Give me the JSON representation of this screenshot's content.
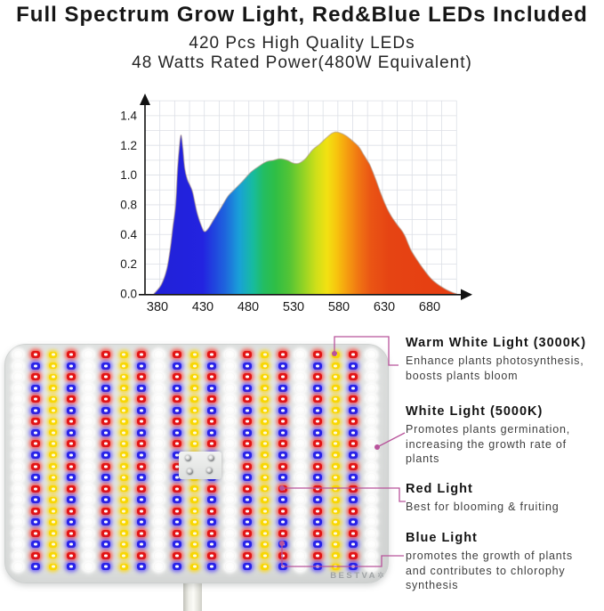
{
  "header": {
    "title": "Full Spectrum Grow Light, Red&Blue LEDs Included",
    "subtitle1": "420 Pcs High Quality LEDs",
    "subtitle2": "48 Watts Rated Power(480W Equivalent)"
  },
  "chart_data": {
    "type": "area",
    "x_ticks": [
      380,
      430,
      480,
      530,
      580,
      630,
      680
    ],
    "y_tick_labels": [
      "0.0",
      "0.2",
      "0.4",
      "0.8",
      "1.0",
      "1.2",
      "1.4"
    ],
    "x_range_nm": [
      376,
      710
    ],
    "grid": true,
    "curve": [
      [
        376,
        0
      ],
      [
        384,
        0.06
      ],
      [
        390,
        0.16
      ],
      [
        394,
        0.3
      ],
      [
        397,
        0.5
      ],
      [
        400,
        0.8
      ],
      [
        402,
        1.02
      ],
      [
        404,
        1.18
      ],
      [
        406,
        1.27
      ],
      [
        408,
        1.18
      ],
      [
        410,
        1.05
      ],
      [
        413,
        0.97
      ],
      [
        416,
        0.93
      ],
      [
        419,
        0.88
      ],
      [
        424,
        0.68
      ],
      [
        429,
        0.5
      ],
      [
        432,
        0.44
      ],
      [
        436,
        0.48
      ],
      [
        442,
        0.6
      ],
      [
        450,
        0.76
      ],
      [
        458,
        0.86
      ],
      [
        466,
        0.91
      ],
      [
        474,
        0.96
      ],
      [
        483,
        1.02
      ],
      [
        492,
        1.06
      ],
      [
        500,
        1.09
      ],
      [
        508,
        1.1
      ],
      [
        515,
        1.11
      ],
      [
        523,
        1.1
      ],
      [
        530,
        1.08
      ],
      [
        536,
        1.08
      ],
      [
        543,
        1.11
      ],
      [
        551,
        1.17
      ],
      [
        559,
        1.21
      ],
      [
        566,
        1.25
      ],
      [
        572,
        1.28
      ],
      [
        577,
        1.29
      ],
      [
        583,
        1.28
      ],
      [
        589,
        1.26
      ],
      [
        595,
        1.23
      ],
      [
        602,
        1.19
      ],
      [
        608,
        1.13
      ],
      [
        614,
        1.07
      ],
      [
        620,
        0.98
      ],
      [
        626,
        0.88
      ],
      [
        632,
        0.78
      ],
      [
        638,
        0.64
      ],
      [
        645,
        0.52
      ],
      [
        652,
        0.4
      ],
      [
        659,
        0.3
      ],
      [
        666,
        0.23
      ],
      [
        674,
        0.16
      ],
      [
        682,
        0.1
      ],
      [
        690,
        0.06
      ],
      [
        698,
        0.03
      ],
      [
        705,
        0.01
      ],
      [
        710,
        0
      ]
    ],
    "spectrum_gradient": [
      [
        380,
        "#2121d8"
      ],
      [
        430,
        "#2323e0"
      ],
      [
        455,
        "#1e66dd"
      ],
      [
        470,
        "#19a0d8"
      ],
      [
        485,
        "#17bba0"
      ],
      [
        497,
        "#23bd62"
      ],
      [
        510,
        "#2fbe45"
      ],
      [
        525,
        "#52c436"
      ],
      [
        540,
        "#8fd226"
      ],
      [
        555,
        "#cfdf19"
      ],
      [
        567,
        "#f2e112"
      ],
      [
        578,
        "#f7c30e"
      ],
      [
        590,
        "#f59a10"
      ],
      [
        602,
        "#f07413"
      ],
      [
        615,
        "#ea5514"
      ],
      [
        635,
        "#e64413"
      ],
      [
        710,
        "#e63d12"
      ]
    ]
  },
  "panel": {
    "logo": "BESTVA",
    "logo_mark": "✲",
    "rows_per_column": 20,
    "total_leds": 420,
    "led_columns": [
      "white",
      "red-blue",
      "warm-white",
      "red-blue",
      "white",
      "red-blue",
      "warm-white",
      "red-blue",
      "white",
      "red-blue",
      "warm-white",
      "red-blue",
      "white",
      "red-blue",
      "warm-white",
      "red-blue",
      "white",
      "red-blue",
      "warm-white",
      "red-blue",
      "white"
    ],
    "led_colors": {
      "red": "#e31515",
      "blue": "#2823e8",
      "warm_white": "#f8d703",
      "white": "#ffffff"
    }
  },
  "annotations": [
    {
      "title": "Warm White Light (3000K)",
      "desc": "Enhance plants photosynthesis,\nboosts plants bloom"
    },
    {
      "title": "White Light (5000K)",
      "desc": "Promotes plants germination,\nincreasing the growth rate of\nplants"
    },
    {
      "title": "Red Light",
      "desc": "Best for blooming & fruiting"
    },
    {
      "title": "Blue Light",
      "desc": "promotes the growth of plants\nand contributes to chlorophy\nsynthesis"
    }
  ],
  "accent_color": "#b8539b"
}
